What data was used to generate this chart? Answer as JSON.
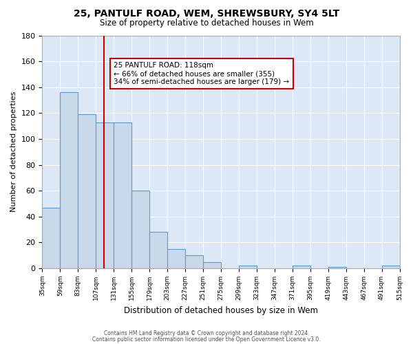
{
  "title": "25, PANTULF ROAD, WEM, SHREWSBURY, SY4 5LT",
  "subtitle": "Size of property relative to detached houses in Wem",
  "xlabel": "Distribution of detached houses by size in Wem",
  "ylabel": "Number of detached properties",
  "bar_edges": [
    35,
    59,
    83,
    107,
    131,
    155,
    179,
    203,
    227,
    251,
    275,
    299,
    323,
    347,
    371,
    395,
    419,
    443,
    467,
    491
  ],
  "bar_heights": [
    47,
    136,
    119,
    113,
    113,
    60,
    28,
    15,
    10,
    5,
    0,
    2,
    0,
    0,
    2,
    0,
    1,
    0,
    0,
    2
  ],
  "bar_color": "#c9d9ea",
  "bar_edge_color": "#5b9bd5",
  "vline_x": 118,
  "vline_color": "#cc0000",
  "annotation_text_line1": "25 PANTULF ROAD: 118sqm",
  "annotation_text_line2": "← 66% of detached houses are smaller (355)",
  "annotation_text_line3": "34% of semi-detached houses are larger (179) →",
  "ylim": [
    0,
    180
  ],
  "xlim": [
    35,
    515
  ],
  "footer_line1": "Contains HM Land Registry data © Crown copyright and database right 2024.",
  "footer_line2": "Contains public sector information licensed under the Open Government Licence v3.0.",
  "bg_color": "#dce8f5",
  "tick_labels": [
    "35sqm",
    "59sqm",
    "83sqm",
    "107sqm",
    "131sqm",
    "155sqm",
    "179sqm",
    "203sqm",
    "227sqm",
    "251sqm",
    "275sqm",
    "299sqm",
    "323sqm",
    "347sqm",
    "371sqm",
    "395sqm",
    "419sqm",
    "443sqm",
    "467sqm",
    "491sqm",
    "515sqm"
  ],
  "tick_positions": [
    35,
    59,
    83,
    107,
    131,
    155,
    179,
    203,
    227,
    251,
    275,
    299,
    323,
    347,
    371,
    395,
    419,
    443,
    467,
    491,
    515
  ],
  "yticks": [
    0,
    20,
    40,
    60,
    80,
    100,
    120,
    140,
    160,
    180
  ]
}
